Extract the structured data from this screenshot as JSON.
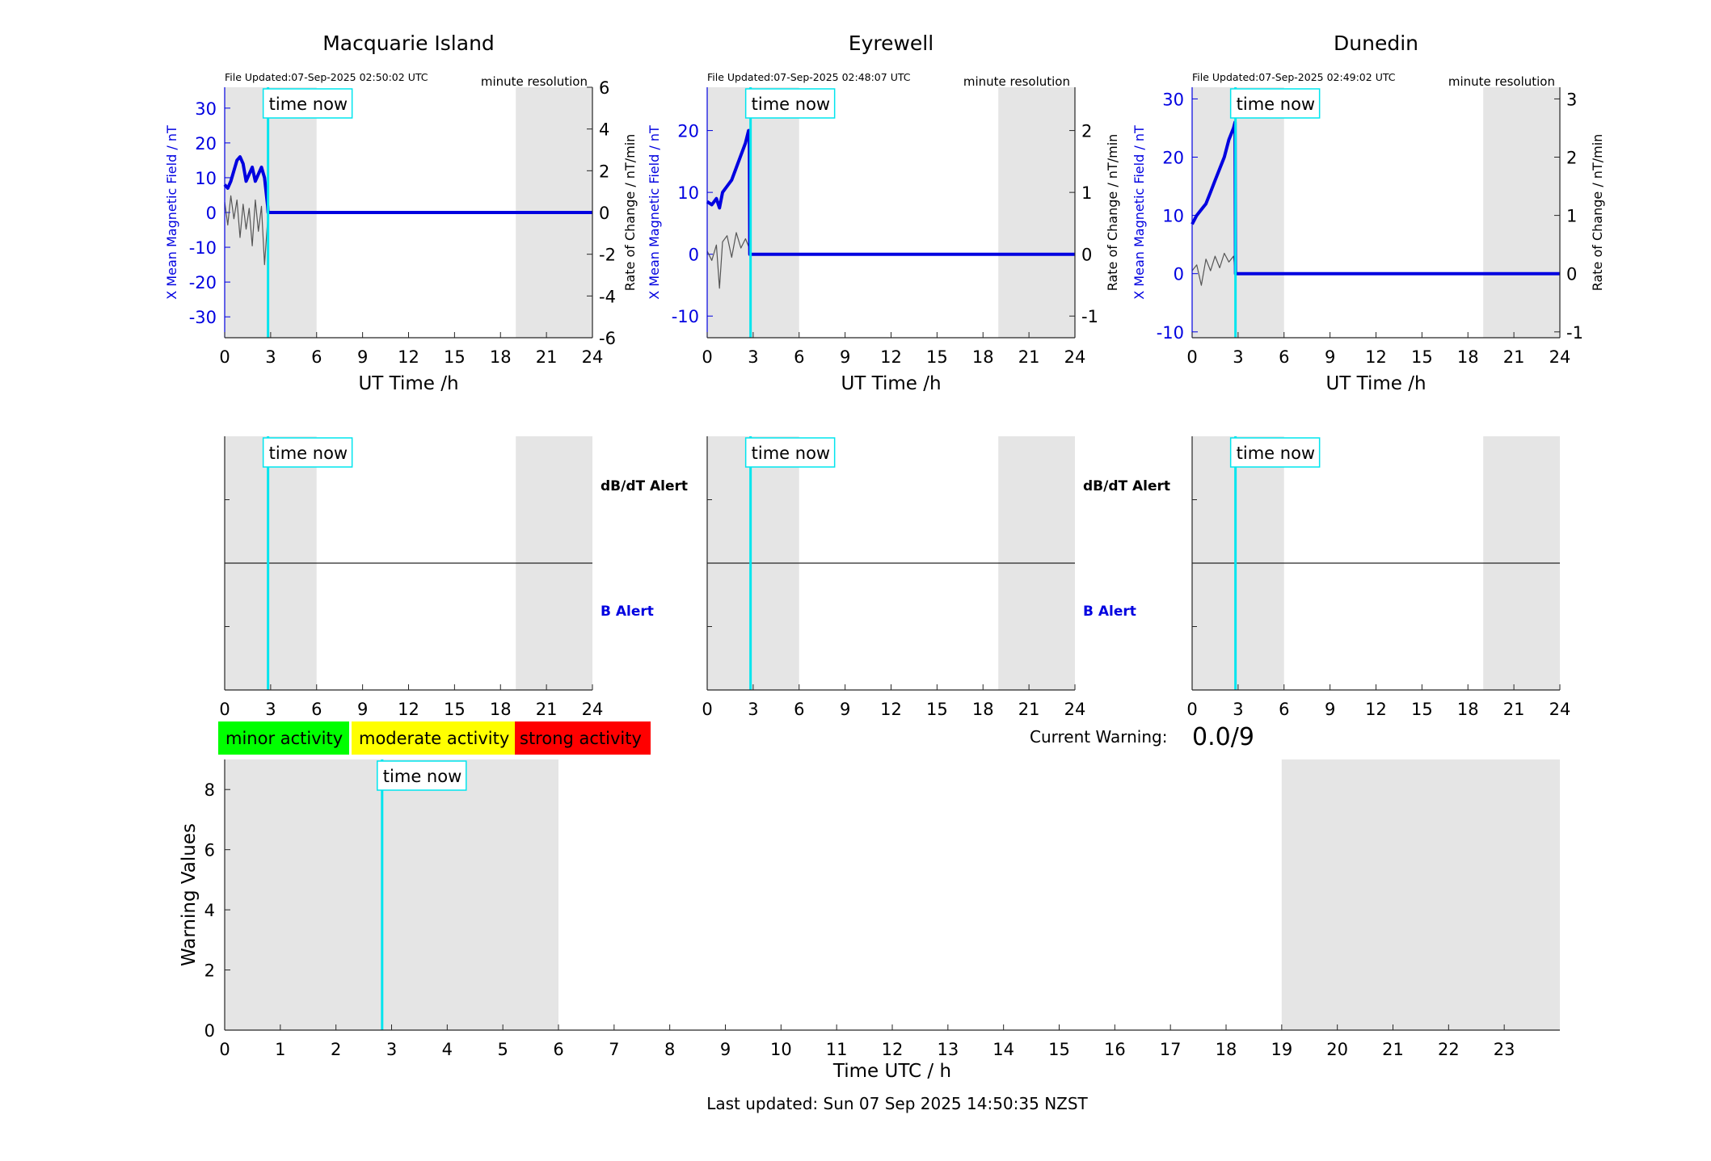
{
  "figure": {
    "footer": "Last updated: Sun 07 Sep 2025 14:50:35 NZST",
    "time_now_label": "time now",
    "current_warning_label": "Current Warning:",
    "current_warning_value": "0.0/9"
  },
  "colors": {
    "field": "#0000e0",
    "rate": "#555555",
    "now_line": "#00e5ee",
    "shade": "#e5e5e5",
    "minor": "#00ff00",
    "moderate": "#ffff00",
    "strong": "#ff0000"
  },
  "legend": {
    "minor": "minor activity",
    "moderate": "moderate activity",
    "strong": "strong activity"
  },
  "chart_data": [
    {
      "type": "line",
      "title": "Macquarie Island",
      "file_updated": "File Updated:07-Sep-2025 02:50:02 UTC",
      "resolution": "minute resolution",
      "xlabel": "UT Time /h",
      "ylabel_left": "X Mean Magnetic Field / nT",
      "ylabel_right": "Rate of Change / nT/min",
      "xlim": [
        0,
        24
      ],
      "xticks": [
        "0",
        "3",
        "6",
        "9",
        "12",
        "15",
        "18",
        "21",
        "24"
      ],
      "ylim_left": [
        -36,
        36
      ],
      "yticks_left": [
        "30",
        "20",
        "10",
        "0",
        "-10",
        "-20",
        "-30"
      ],
      "ylim_right": [
        -6,
        6
      ],
      "yticks_right": [
        "6",
        "4",
        "2",
        "0",
        "-2",
        "-4",
        "-6"
      ],
      "night_shading": [
        [
          0,
          6
        ],
        [
          19,
          24
        ]
      ],
      "time_now": 2.83,
      "series": [
        {
          "x": [
            0,
            0.2,
            0.4,
            0.6,
            0.8,
            1.0,
            1.2,
            1.4,
            1.6,
            1.8,
            2.0,
            2.2,
            2.4,
            2.6,
            2.8,
            2.83,
            24
          ],
          "values": [
            8,
            7,
            9,
            12,
            15,
            16,
            14,
            9,
            11,
            13,
            9,
            11,
            13,
            10,
            2,
            0,
            0
          ]
        },
        {
          "x": [
            0,
            0.2,
            0.4,
            0.6,
            0.8,
            1.0,
            1.2,
            1.4,
            1.6,
            1.8,
            2.0,
            2.2,
            2.4,
            2.6,
            2.8,
            2.83,
            24
          ],
          "values": [
            0.5,
            -0.6,
            0.8,
            -0.3,
            0.6,
            -1.2,
            0.4,
            -0.8,
            0.2,
            -1.6,
            0.6,
            -0.9,
            0.3,
            -2.5,
            -0.4,
            0,
            0
          ]
        }
      ]
    },
    {
      "type": "line",
      "title": "Eyrewell",
      "file_updated": "File Updated:07-Sep-2025 02:48:07 UTC",
      "resolution": "minute resolution",
      "xlabel": "UT Time /h",
      "ylabel_left": "X Mean Magnetic Field / nT",
      "ylabel_right": "Rate of Change / nT/min",
      "xlim": [
        0,
        24
      ],
      "xticks": [
        "0",
        "3",
        "6",
        "9",
        "12",
        "15",
        "18",
        "21",
        "24"
      ],
      "ylim_left": [
        -13.5,
        27
      ],
      "yticks_left": [
        "20",
        "10",
        "0",
        "-10"
      ],
      "ylim_right": [
        -1.35,
        2.7
      ],
      "yticks_right": [
        "2",
        "1",
        "0",
        "-1"
      ],
      "night_shading": [
        [
          0,
          6
        ],
        [
          19,
          24
        ]
      ],
      "time_now": 2.83,
      "series": [
        {
          "x": [
            0,
            0.3,
            0.6,
            0.8,
            1.0,
            1.3,
            1.6,
            1.9,
            2.2,
            2.5,
            2.7,
            2.75,
            2.78,
            24
          ],
          "values": [
            8.5,
            8,
            9,
            7.5,
            10,
            11,
            12,
            14,
            16,
            18,
            20,
            20,
            0,
            0
          ]
        },
        {
          "x": [
            0,
            0.3,
            0.6,
            0.8,
            1.0,
            1.3,
            1.6,
            1.9,
            2.2,
            2.5,
            2.75,
            2.78,
            24
          ],
          "values": [
            0.05,
            -0.1,
            0.15,
            -0.55,
            0.2,
            0.3,
            -0.05,
            0.35,
            0.1,
            0.25,
            0.1,
            0,
            0
          ]
        }
      ]
    },
    {
      "type": "line",
      "title": "Dunedin",
      "file_updated": "File Updated:07-Sep-2025 02:49:02 UTC",
      "resolution": "minute resolution",
      "xlabel": "UT Time /h",
      "ylabel_left": "X Mean Magnetic Field / nT",
      "ylabel_right": "Rate of Change / nT/min",
      "xlim": [
        0,
        24
      ],
      "xticks": [
        "0",
        "3",
        "6",
        "9",
        "12",
        "15",
        "18",
        "21",
        "24"
      ],
      "ylim_left": [
        -11,
        32
      ],
      "yticks_left": [
        "30",
        "20",
        "10",
        "0",
        "-10"
      ],
      "ylim_right": [
        -1.1,
        3.2
      ],
      "yticks_right": [
        "3",
        "2",
        "1",
        "0",
        "-1"
      ],
      "night_shading": [
        [
          0,
          6
        ],
        [
          19,
          24
        ]
      ],
      "time_now": 2.83,
      "series": [
        {
          "x": [
            0,
            0.3,
            0.6,
            0.9,
            1.2,
            1.5,
            1.8,
            2.1,
            2.4,
            2.7,
            2.8,
            2.83,
            24
          ],
          "values": [
            8.5,
            10,
            11,
            12,
            14,
            16,
            18,
            20,
            23,
            25,
            26,
            0,
            0
          ]
        },
        {
          "x": [
            0,
            0.3,
            0.6,
            0.9,
            1.2,
            1.5,
            1.8,
            2.1,
            2.4,
            2.7,
            2.83,
            24
          ],
          "values": [
            0.05,
            0.15,
            -0.2,
            0.25,
            0.05,
            0.3,
            0.1,
            0.35,
            0.2,
            0.3,
            0,
            0
          ]
        }
      ]
    },
    {
      "type": "line",
      "title": "",
      "xlim": [
        0,
        24
      ],
      "xticks": [
        "0",
        "3",
        "6",
        "9",
        "12",
        "15",
        "18",
        "21",
        "24"
      ],
      "night_shading": [
        [
          0,
          6
        ],
        [
          19,
          24
        ]
      ],
      "time_now": 2.83,
      "labels": [
        "dB/dT Alert",
        "B Alert"
      ],
      "series": []
    },
    {
      "type": "line",
      "title": "",
      "xlim": [
        0,
        24
      ],
      "xticks": [
        "0",
        "3",
        "6",
        "9",
        "12",
        "15",
        "18",
        "21",
        "24"
      ],
      "night_shading": [
        [
          0,
          6
        ],
        [
          19,
          24
        ]
      ],
      "time_now": 2.83,
      "labels": [
        "dB/dT Alert",
        "B Alert"
      ],
      "series": []
    },
    {
      "type": "line",
      "title": "",
      "xlim": [
        0,
        24
      ],
      "xticks": [
        "0",
        "3",
        "6",
        "9",
        "12",
        "15",
        "18",
        "21",
        "24"
      ],
      "night_shading": [
        [
          0,
          6
        ],
        [
          19,
          24
        ]
      ],
      "time_now": 2.83,
      "labels": [],
      "series": []
    },
    {
      "type": "line",
      "title": "",
      "xlabel": "Time UTC / h",
      "ylabel": "Warning Values",
      "xlim": [
        0,
        24
      ],
      "ylim": [
        0,
        9
      ],
      "xticks": [
        "0",
        "1",
        "2",
        "3",
        "4",
        "5",
        "6",
        "7",
        "8",
        "9",
        "10",
        "11",
        "12",
        "13",
        "14",
        "15",
        "16",
        "17",
        "18",
        "19",
        "20",
        "21",
        "22",
        "23"
      ],
      "yticks": [
        "0",
        "2",
        "4",
        "6",
        "8"
      ],
      "night_shading": [
        [
          0,
          6
        ],
        [
          19,
          24
        ]
      ],
      "time_now": 2.83,
      "series": []
    }
  ]
}
